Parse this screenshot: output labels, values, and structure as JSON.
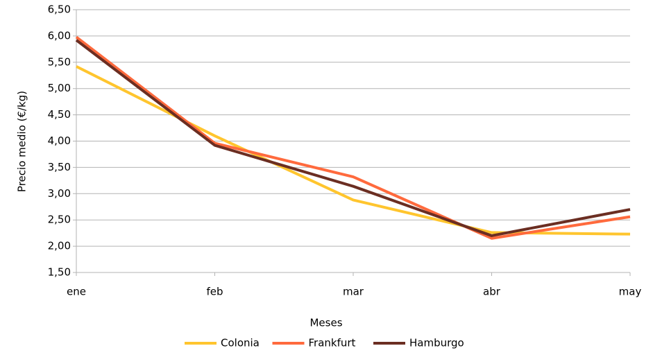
{
  "chart_data": {
    "type": "line",
    "x_label": "Meses",
    "y_label": "Precio medio (€/kg)",
    "categories": [
      "ene",
      "feb",
      "mar",
      "abr",
      "may"
    ],
    "series": [
      {
        "name": "Colonia",
        "color": "#ffc52e",
        "values": [
          5.42,
          4.1,
          2.88,
          2.26,
          2.23
        ]
      },
      {
        "name": "Frankfurt",
        "color": "#ff6a3d",
        "values": [
          5.98,
          3.96,
          3.32,
          2.15,
          2.56
        ]
      },
      {
        "name": "Hamburgo",
        "color": "#6b2e22",
        "values": [
          5.92,
          3.92,
          3.14,
          2.2,
          2.7
        ]
      }
    ],
    "ylim": [
      1.5,
      6.5
    ],
    "yticks": [
      {
        "value": 1.5,
        "label": "1,50"
      },
      {
        "value": 2,
        "label": "2,00"
      },
      {
        "value": 2.5,
        "label": "2,50"
      },
      {
        "value": 3,
        "label": "3,00"
      },
      {
        "value": 3.5,
        "label": "3,50"
      },
      {
        "value": 4,
        "label": "4,00"
      },
      {
        "value": 4.5,
        "label": "4,50"
      },
      {
        "value": 5,
        "label": "5,00"
      },
      {
        "value": 5.5,
        "label": "5,50"
      },
      {
        "value": 6,
        "label": "6,00"
      },
      {
        "value": 6.5,
        "label": "6,50"
      }
    ],
    "grid": true,
    "legend": "bottom"
  }
}
